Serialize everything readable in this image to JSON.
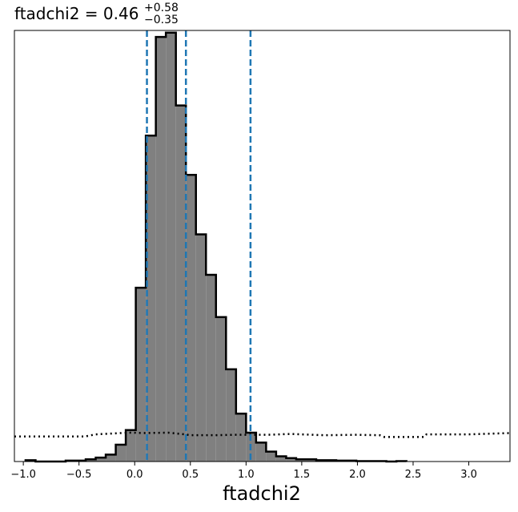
{
  "chart_data": {
    "type": "histogram",
    "title": {
      "main": "ftadchi2 = 0.46",
      "upper_err": "+0.58",
      "lower_err": "−0.35"
    },
    "xlabel": "ftadchi2",
    "ylabel": "",
    "xlim": [
      -1.08,
      3.37
    ],
    "ylim": [
      0,
      1.0
    ],
    "x_ticks": [
      -1.0,
      -0.5,
      0.0,
      0.5,
      1.0,
      1.5,
      2.0,
      2.5,
      3.0
    ],
    "x_tick_labels": [
      "−1.0",
      "−0.5",
      "0.0",
      "0.5",
      "1.0",
      "1.5",
      "2.0",
      "2.5",
      "3.0"
    ],
    "grid": false,
    "legend": "none",
    "colors": {
      "fill": "#808080",
      "edge": "#000000",
      "quantile_line": "#1f77b4"
    },
    "histogram": {
      "bin_edges": [
        -0.98,
        -0.89,
        -0.8,
        -0.71,
        -0.62,
        -0.53,
        -0.44,
        -0.35,
        -0.26,
        -0.17,
        -0.08,
        0.01,
        0.1,
        0.19,
        0.28,
        0.37,
        0.46,
        0.55,
        0.64,
        0.73,
        0.82,
        0.91,
        1.0,
        1.09,
        1.18,
        1.27,
        1.36,
        1.45,
        1.54,
        1.63,
        1.72,
        1.81,
        1.9,
        1.99,
        2.08,
        2.17,
        2.26,
        2.35,
        2.44
      ],
      "counts": [
        0.003,
        0.0,
        0.0,
        0.0,
        0.002,
        0.002,
        0.005,
        0.009,
        0.016,
        0.039,
        0.073,
        0.403,
        0.756,
        0.985,
        0.995,
        0.826,
        0.665,
        0.527,
        0.433,
        0.335,
        0.214,
        0.111,
        0.067,
        0.044,
        0.023,
        0.012,
        0.008,
        0.005,
        0.005,
        0.003,
        0.003,
        0.002,
        0.002,
        0.001,
        0.001,
        0.001,
        0.0,
        0.001
      ]
    },
    "quantiles": [
      0.11,
      0.46,
      1.04
    ],
    "prior_line": {
      "style": "dotted",
      "x": [
        -1.08,
        -0.45,
        -0.35,
        -0.2,
        -0.05,
        0.1,
        0.3,
        0.45,
        0.5,
        0.7,
        0.9,
        1.2,
        1.4,
        1.7,
        2.0,
        2.2,
        2.24,
        2.6,
        2.62,
        3.0,
        3.37
      ],
      "y": [
        0.058,
        0.058,
        0.063,
        0.065,
        0.067,
        0.066,
        0.067,
        0.063,
        0.061,
        0.061,
        0.062,
        0.062,
        0.064,
        0.061,
        0.062,
        0.061,
        0.057,
        0.057,
        0.063,
        0.063,
        0.066
      ]
    }
  }
}
